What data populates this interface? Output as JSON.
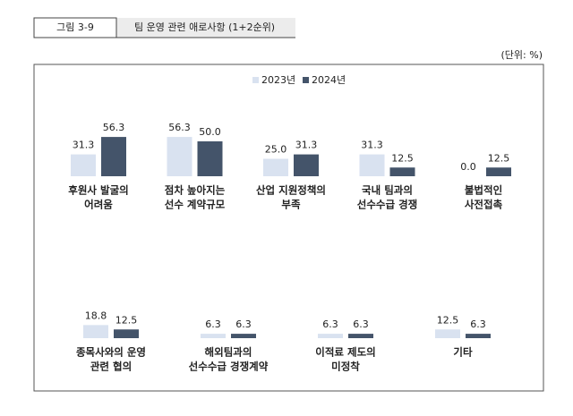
{
  "header": {
    "figure": "그림 3-9",
    "title": "팀 운영 관련 애로사항 (1+2순위)",
    "unit": "(단위: %)"
  },
  "chart_data": {
    "type": "bar",
    "categories": [
      [
        "후원사 발굴의",
        "어려움"
      ],
      [
        "점차 높아지는",
        "선수 계약규모"
      ],
      [
        "산업 지원정책의",
        "부족"
      ],
      [
        "국내 팀과의",
        "선수수급 경쟁"
      ],
      [
        "불법적인",
        "사전접촉"
      ],
      [
        "종목사와의 운영",
        "관련 협의"
      ],
      [
        "해외팀과의",
        "선수수급 경쟁계약"
      ],
      [
        "이적료 제도의",
        "미정착"
      ],
      [
        "기타"
      ]
    ],
    "series": [
      {
        "name": "2023년",
        "color": "#d9e2f0",
        "values": [
          31.3,
          56.3,
          25.0,
          31.3,
          0.0,
          18.8,
          6.3,
          6.3,
          12.5
        ],
        "value_labels": [
          "31.3",
          "56.3",
          "25.0",
          "31.3",
          "0.0",
          "18.8",
          "6.3",
          "6.3",
          "12.5"
        ]
      },
      {
        "name": "2024년",
        "color": "#44546a",
        "values": [
          56.3,
          50.0,
          31.3,
          12.5,
          12.5,
          12.5,
          6.3,
          6.3,
          6.3
        ],
        "value_labels": [
          "56.3",
          "50.0",
          "31.3",
          "12.5",
          "12.5",
          "12.5",
          "6.3",
          "6.3",
          "6.3"
        ]
      }
    ]
  }
}
